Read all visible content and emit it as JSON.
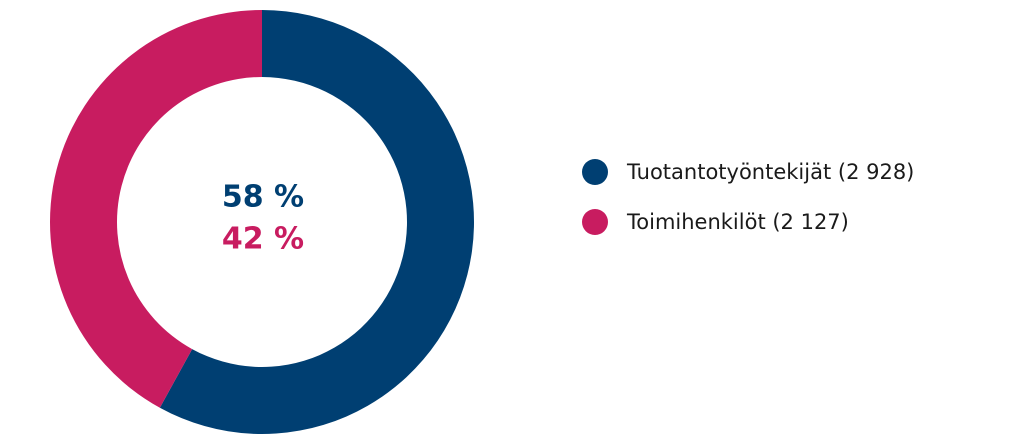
{
  "chart_data": {
    "type": "pie",
    "donut": true,
    "categories": [
      "Tuotantotyöntekijät (2 928)",
      "Toimihenkilöt (2 127)"
    ],
    "values": [
      58,
      42
    ],
    "value_labels": [
      "58 %",
      "42 %"
    ],
    "colors": [
      "#003f72",
      "#c81c60"
    ]
  }
}
